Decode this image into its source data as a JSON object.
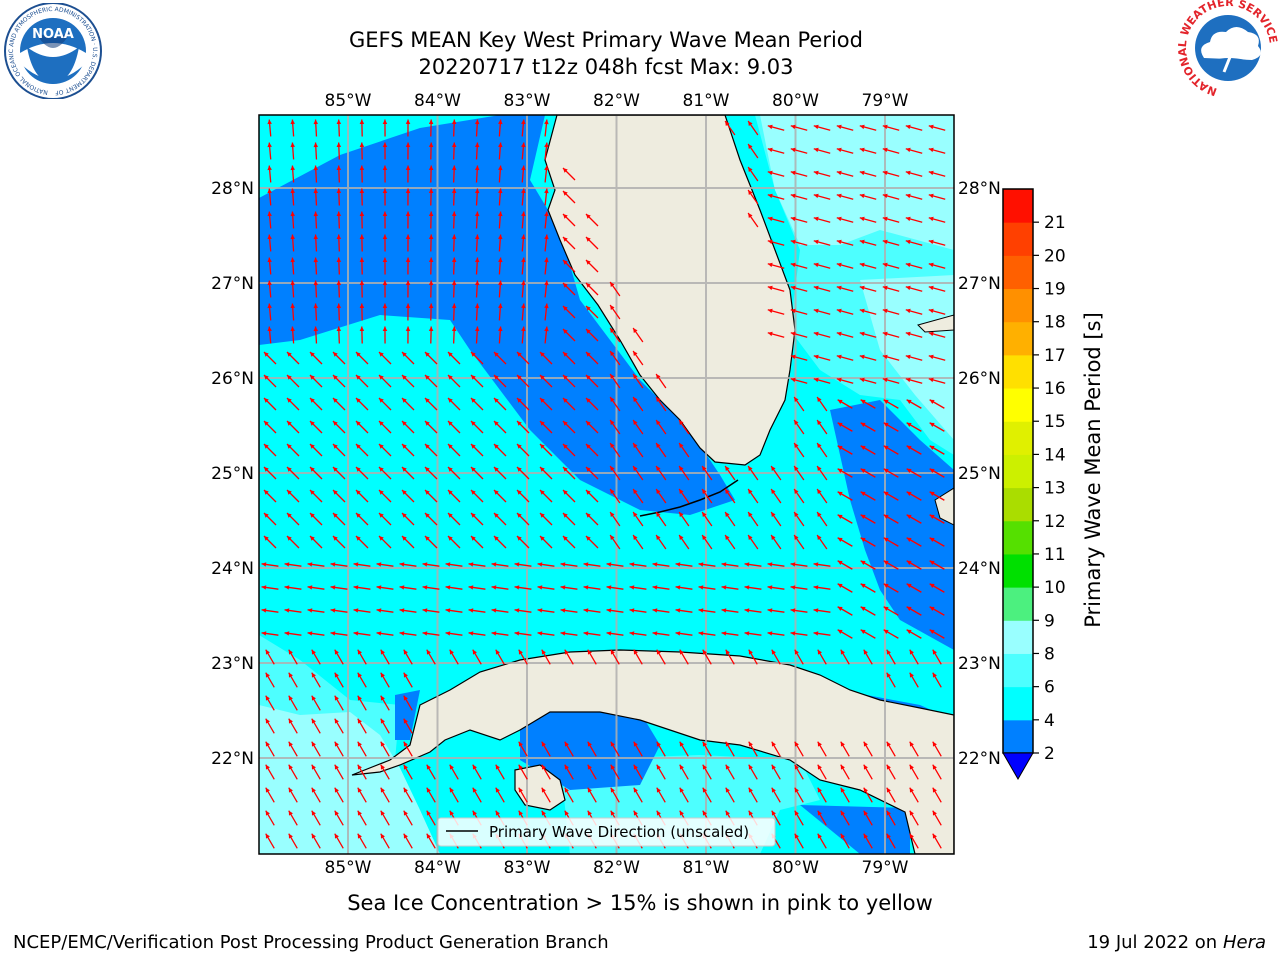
{
  "title_line1": "GEFS MEAN Key West Primary Wave Mean Period",
  "title_line2": "20220717 t12z 048h fcst   Max: 9.03",
  "map": {
    "lon_labels": [
      "85°W",
      "84°W",
      "83°W",
      "82°W",
      "81°W",
      "80°W",
      "79°W"
    ],
    "lat_labels": [
      "28°N",
      "27°N",
      "26°N",
      "25°N",
      "24°N",
      "23°N",
      "22°N"
    ],
    "legend_label": "Primary Wave Direction (unscaled)",
    "colors": {
      "land": "#eeecdf",
      "coast": "#000000",
      "grid": "#b0b0b0",
      "arrow": "#ff0000"
    }
  },
  "colorbar": {
    "label": "Primary Wave Mean Period [s]",
    "ticks": [
      "2",
      "4",
      "6",
      "8",
      "9",
      "10",
      "11",
      "12",
      "13",
      "14",
      "15",
      "16",
      "17",
      "18",
      "19",
      "20",
      "21"
    ],
    "colors": [
      "#0080ff",
      "#00ffff",
      "#4dffff",
      "#99ffff",
      "#4cf07f",
      "#00e000",
      "#55e000",
      "#aadd00",
      "#ccf000",
      "#e0f000",
      "#ffff00",
      "#ffe000",
      "#ffb000",
      "#ff9000",
      "#ff6000",
      "#ff4000",
      "#ff1000"
    ],
    "under_color": "#0000ff"
  },
  "footer": {
    "note": "Sea Ice Concentration > 15% is shown in pink to yellow",
    "left": "NCEP/EMC/Verification Post Processing Product Generation Branch",
    "right_prefix": "19 Jul 2022 on ",
    "right_machine": "Hera"
  },
  "logos": {
    "noaa_text": "NOAA",
    "noaa_ring_text": "NATIONAL OCEANIC AND ATMOSPHERIC ADMINISTRATION · U.S. DEPARTMENT OF COMMERCE",
    "nws_ring_text": "NATIONAL WEATHER SERVICE"
  }
}
